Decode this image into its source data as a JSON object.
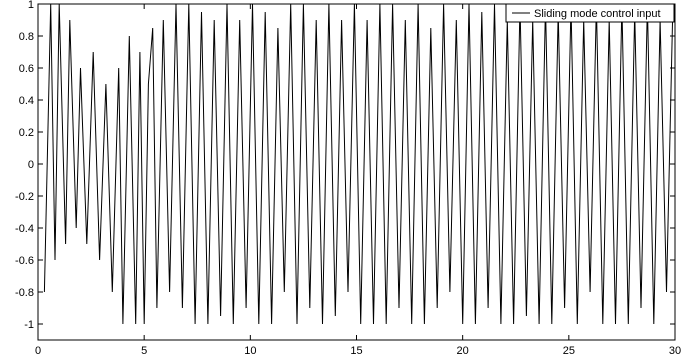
{
  "chart_data": {
    "type": "line",
    "title": "",
    "xlabel": "",
    "ylabel": "",
    "xlim": [
      0,
      30
    ],
    "ylim": [
      -1.1,
      1.0
    ],
    "x_ticks": [
      0,
      5,
      10,
      15,
      20,
      25,
      30
    ],
    "y_ticks": [
      1,
      0.8,
      0.6,
      0.4,
      0.2,
      0,
      -0.2,
      -0.4,
      -0.6,
      -0.8,
      -1
    ],
    "x_tick_labels": [
      "0",
      "5",
      "10",
      "15",
      "20",
      "25",
      "30"
    ],
    "y_tick_labels": [
      "1",
      "0.8",
      "0.6",
      "0.4",
      "0.2",
      "0",
      "-0.2",
      "-0.4",
      "-0.6",
      "-0.8",
      "-1"
    ],
    "legend": {
      "position": "top-right",
      "entries": [
        "Sliding mode control input"
      ]
    },
    "grid": false,
    "series": [
      {
        "name": "Sliding mode control input",
        "color": "#000000",
        "x": [
          0.3,
          0.6,
          0.8,
          1.0,
          1.3,
          1.5,
          1.8,
          2.0,
          2.3,
          2.6,
          2.9,
          3.2,
          3.5,
          3.8,
          4.0,
          4.3,
          4.6,
          4.8,
          5.0,
          5.2,
          5.4,
          5.6,
          5.9,
          6.2,
          6.5,
          6.8,
          7.1,
          7.4,
          7.7,
          8.0,
          8.3,
          8.6,
          8.9,
          9.2,
          9.5,
          9.8,
          10.1,
          10.4,
          10.7,
          11.0,
          11.3,
          11.6,
          11.9,
          12.2,
          12.5,
          12.8,
          13.1,
          13.4,
          13.7,
          14.0,
          14.3,
          14.6,
          14.9,
          15.2,
          15.5,
          15.8,
          16.1,
          16.4,
          16.7,
          17.0,
          17.3,
          17.6,
          17.9,
          18.2,
          18.5,
          18.8,
          19.1,
          19.4,
          19.7,
          20.0,
          20.3,
          20.6,
          20.9,
          21.2,
          21.5,
          21.8,
          22.1,
          22.4,
          22.7,
          23.0,
          23.3,
          23.6,
          23.9,
          24.2,
          24.5,
          24.8,
          25.1,
          25.4,
          25.7,
          26.0,
          26.3,
          26.6,
          26.9,
          27.2,
          27.5,
          27.8,
          28.1,
          28.4,
          28.7,
          29.0,
          29.3,
          29.6,
          29.9
        ],
        "values": [
          -0.8,
          1.0,
          -0.6,
          1.0,
          -0.5,
          0.9,
          -0.4,
          0.6,
          -0.5,
          0.7,
          -0.6,
          0.5,
          -0.8,
          0.6,
          -1.0,
          0.8,
          -1.0,
          0.7,
          -1.0,
          0.5,
          0.85,
          -0.9,
          0.9,
          -0.8,
          1.0,
          -0.9,
          1.0,
          -1.0,
          0.95,
          -1.0,
          0.9,
          -0.95,
          1.0,
          -1.0,
          0.9,
          -0.9,
          1.0,
          -1.0,
          0.95,
          -1.0,
          0.85,
          -0.8,
          1.0,
          -1.0,
          1.0,
          -0.9,
          0.9,
          -1.0,
          1.0,
          -0.95,
          0.9,
          -0.8,
          1.0,
          -1.0,
          0.9,
          -1.0,
          1.0,
          -1.0,
          1.0,
          -0.9,
          0.9,
          -1.0,
          1.0,
          -1.0,
          0.85,
          -0.9,
          1.0,
          -0.8,
          0.9,
          -1.0,
          1.0,
          -1.0,
          0.95,
          -0.9,
          1.0,
          -1.0,
          0.9,
          -1.0,
          1.0,
          -0.95,
          0.9,
          -1.0,
          1.0,
          -1.0,
          0.95,
          -0.9,
          1.0,
          -1.0,
          0.9,
          -0.8,
          1.0,
          -1.0,
          0.9,
          -1.0,
          1.0,
          -1.0,
          0.95,
          -0.9,
          1.0,
          -1.0,
          0.9,
          -0.8,
          1.0
        ]
      }
    ]
  }
}
